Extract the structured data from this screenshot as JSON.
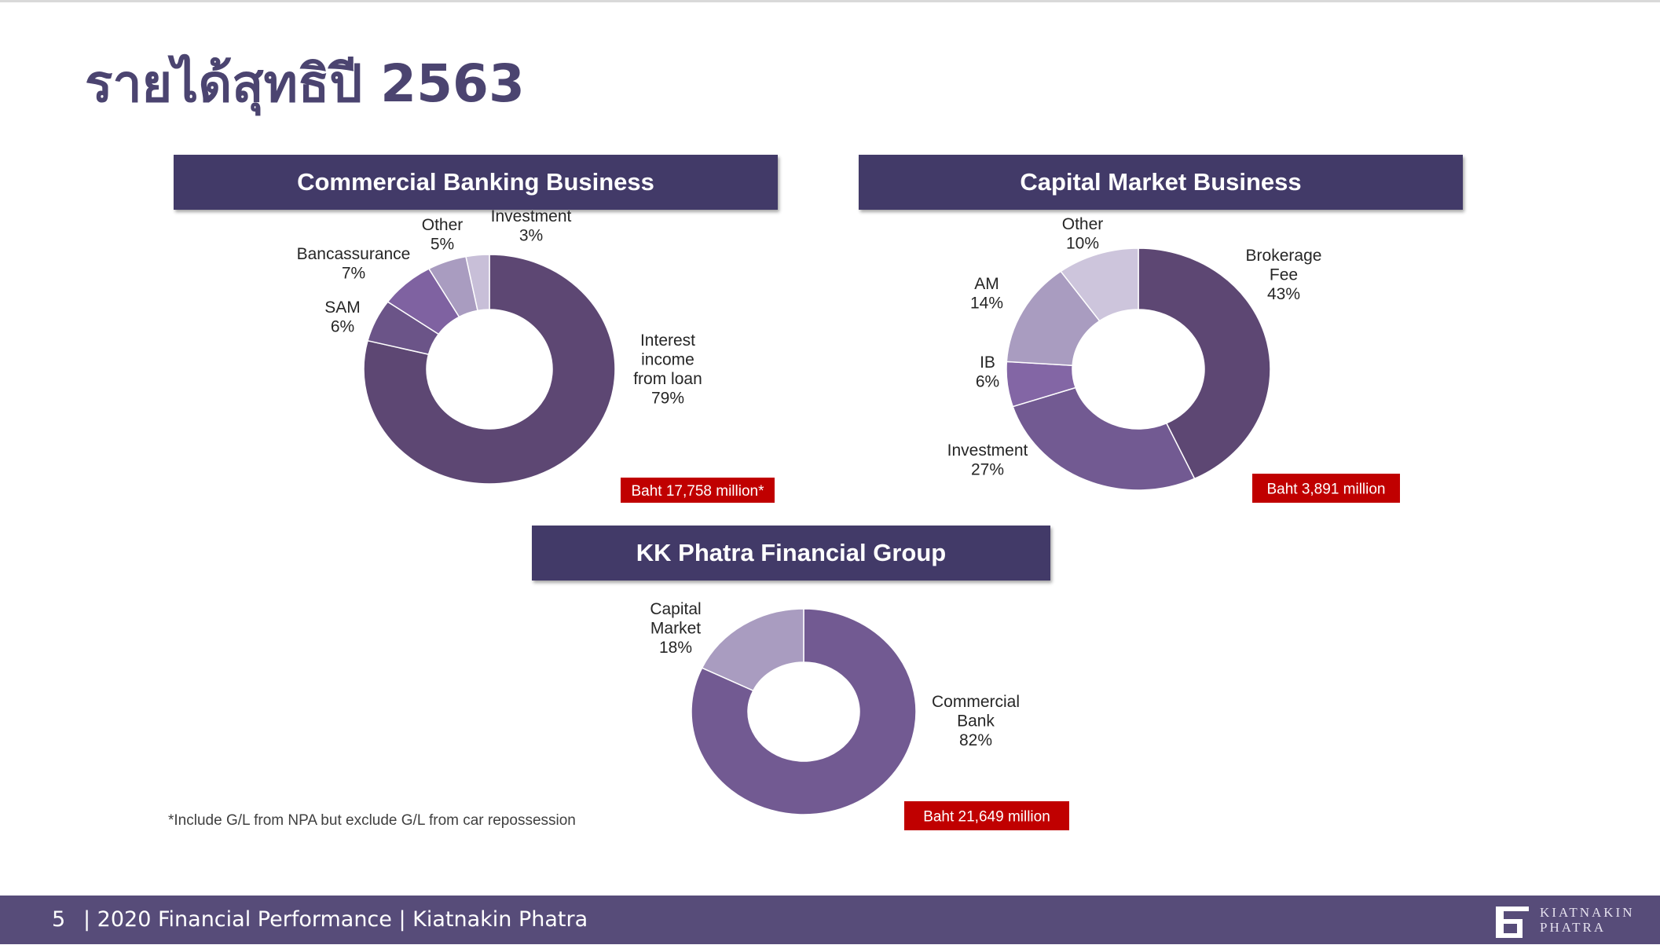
{
  "title": "รายได้สุทธิปี 2563",
  "footnote": "*Include G/L from NPA but exclude G/L from car repossession",
  "footer": {
    "page": "5",
    "text": "| 2020 Financial Performance |  Kiatnakin Phatra"
  },
  "logo": {
    "line1": "KIATNAKIN",
    "line2": "PHATRA"
  },
  "colors": {
    "header_bg": "#423a68",
    "badge_bg": "#c00000",
    "footer_bg": "#574c79"
  },
  "chart_data": [
    {
      "type": "pie",
      "title": "Commercial Banking Business",
      "total_label": "Baht 17,758 million*",
      "slices": [
        {
          "label": [
            "Interest",
            "income",
            "from loan"
          ],
          "value": 79,
          "display": "79%",
          "color": "#5d4773"
        },
        {
          "label": [
            "SAM"
          ],
          "value": 6,
          "display": "6%",
          "color": "#6b5488"
        },
        {
          "label": [
            "Bancassurance"
          ],
          "value": 7,
          "display": "7%",
          "color": "#7f62a1"
        },
        {
          "label": [
            "Other"
          ],
          "value": 5,
          "display": "5%",
          "color": "#a99cc0"
        },
        {
          "label": [
            "Investment"
          ],
          "value": 3,
          "display": "3%",
          "color": "#c8bfd8"
        }
      ]
    },
    {
      "type": "pie",
      "title": "Capital Market Business",
      "total_label": "Baht 3,891 million",
      "slices": [
        {
          "label": [
            "Brokerage",
            "Fee"
          ],
          "value": 43,
          "display": "43%",
          "color": "#5d4773"
        },
        {
          "label": [
            "Investment"
          ],
          "value": 27,
          "display": "27%",
          "color": "#725a92"
        },
        {
          "label": [
            "IB"
          ],
          "value": 6,
          "display": "6%",
          "color": "#8366a5"
        },
        {
          "label": [
            "AM"
          ],
          "value": 14,
          "display": "14%",
          "color": "#a99cc0"
        },
        {
          "label": [
            "Other"
          ],
          "value": 10,
          "display": "10%",
          "color": "#cdc5dc"
        }
      ]
    },
    {
      "type": "pie",
      "title": "KK Phatra Financial Group",
      "total_label": "Baht 21,649 million",
      "slices": [
        {
          "label": [
            "Commercial",
            "Bank"
          ],
          "value": 82,
          "display": "82%",
          "color": "#725a92"
        },
        {
          "label": [
            "Capital",
            "Market"
          ],
          "value": 18,
          "display": "18%",
          "color": "#a99cc0"
        }
      ]
    }
  ]
}
